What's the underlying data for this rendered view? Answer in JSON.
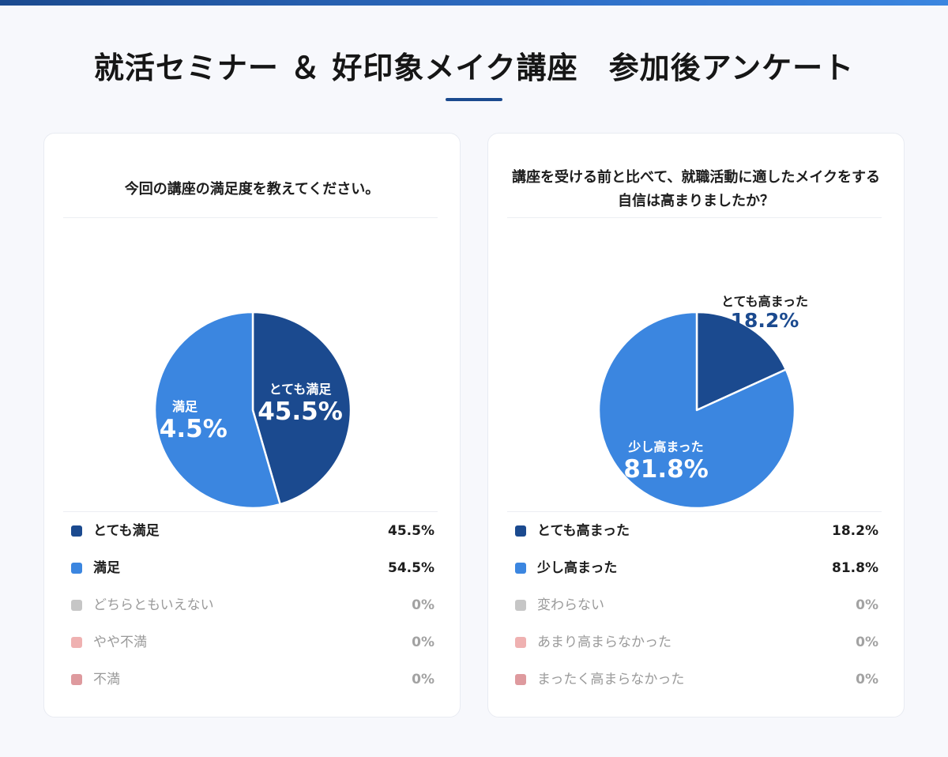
{
  "page": {
    "title": "就活セミナー ＆ 好印象メイク講座　参加後アンケート"
  },
  "colors": {
    "dark_blue": "#1b4a8f",
    "blue": "#3b86e0",
    "gray": "#c6c6c6",
    "light_pink": "#efb1b1",
    "pink": "#de9a9e",
    "accent_text": "#1b4a8f"
  },
  "chart_data": [
    {
      "type": "pie",
      "title": "今回の講座の満足度を教えてください。",
      "unit": "%",
      "slices": [
        {
          "label": "とても満足",
          "value": 45.5,
          "display": "45.5%",
          "color": "#1b4a8f"
        },
        {
          "label": "満足",
          "value": 54.5,
          "display": "54.5%",
          "color": "#3b86e0"
        },
        {
          "label": "どちらともいえない",
          "value": 0,
          "display": "0%",
          "color": "#c6c6c6"
        },
        {
          "label": "やや不満",
          "value": 0,
          "display": "0%",
          "color": "#efb1b1"
        },
        {
          "label": "不満",
          "value": 0,
          "display": "0%",
          "color": "#de9a9e"
        }
      ]
    },
    {
      "type": "pie",
      "title": "講座を受ける前と比べて、就職活動に適したメイクをする自信は高まりましたか？",
      "unit": "%",
      "slices": [
        {
          "label": "とても高まった",
          "value": 18.2,
          "display": "18.2%",
          "color": "#1b4a8f"
        },
        {
          "label": "少し高まった",
          "value": 81.8,
          "display": "81.8%",
          "color": "#3b86e0"
        },
        {
          "label": "変わらない",
          "value": 0,
          "display": "0%",
          "color": "#c6c6c6"
        },
        {
          "label": "あまり高まらなかった",
          "value": 0,
          "display": "0%",
          "color": "#efb1b1"
        },
        {
          "label": "まったく高まらなかった",
          "value": 0,
          "display": "0%",
          "color": "#de9a9e"
        }
      ]
    }
  ]
}
